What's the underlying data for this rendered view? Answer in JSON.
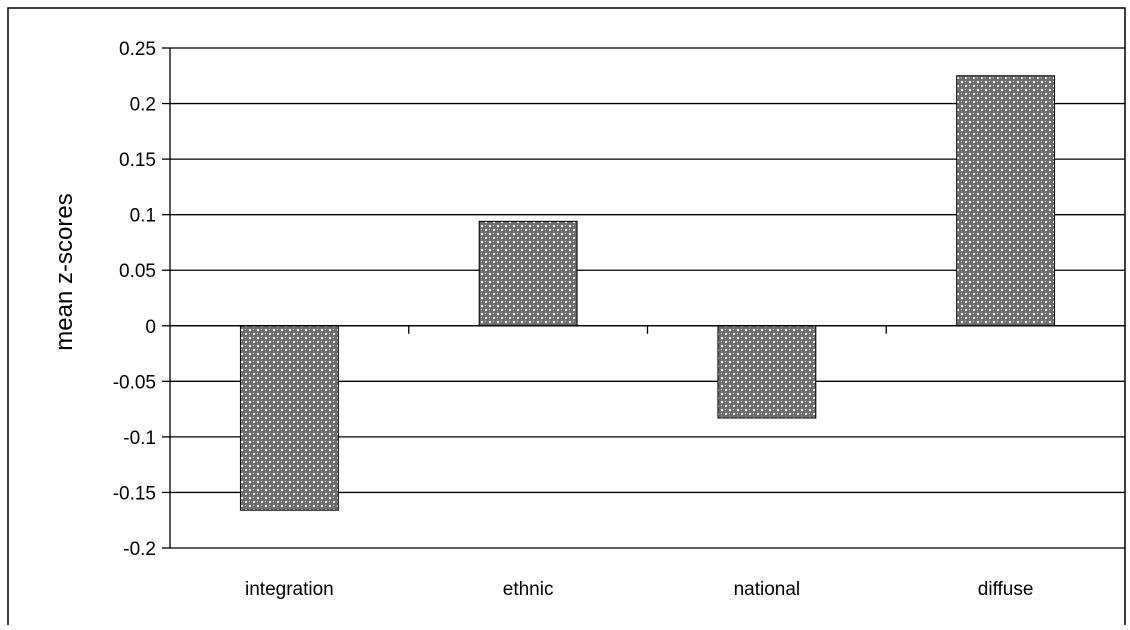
{
  "chart_data": {
    "type": "bar",
    "title": "",
    "xlabel": "",
    "ylabel": "mean z-scores",
    "categories": [
      "integration",
      "ethnic",
      "national",
      "diffuse"
    ],
    "values": [
      -0.166,
      0.094,
      -0.083,
      0.225
    ],
    "ylim": [
      -0.2,
      0.25
    ],
    "yticks": [
      0.25,
      0.2,
      0.15,
      0.1,
      0.05,
      0,
      -0.05,
      -0.1,
      -0.15,
      -0.2
    ],
    "ytick_labels": [
      "0.25",
      "0.2",
      "0.15",
      "0.1",
      "0.05",
      "0",
      "-0.05",
      "-0.1",
      "-0.15",
      "-0.2"
    ],
    "grid": true,
    "legend": "none",
    "bar_pattern": "crosshatch",
    "bar_color": "#7a7a7a"
  }
}
